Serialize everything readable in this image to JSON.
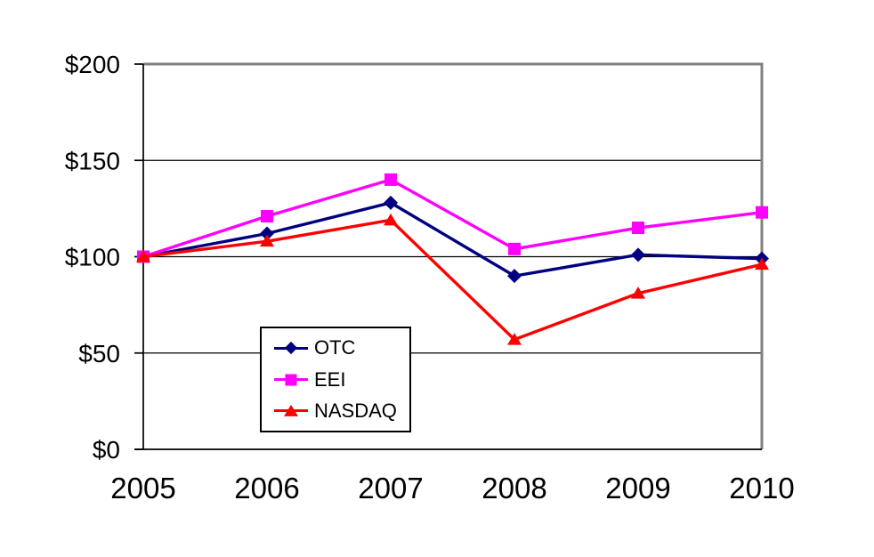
{
  "chart_data": {
    "type": "line",
    "title": "",
    "x_labels": [
      "2005",
      "2006",
      "2007",
      "2008",
      "2009",
      "2010"
    ],
    "y_ticks": [
      0,
      50,
      100,
      150,
      200
    ],
    "y_tick_labels": [
      "$0",
      "$50",
      "$100",
      "$150",
      "$200"
    ],
    "ylim": [
      0,
      200
    ],
    "grid": "horizontal-major",
    "legend_position": "inside-lower-left",
    "series": [
      {
        "name": "OTC",
        "color": "#000080",
        "marker": "diamond",
        "values": [
          100,
          112,
          128,
          90,
          101,
          99
        ]
      },
      {
        "name": "EEI",
        "color": "#FF00FF",
        "marker": "square",
        "values": [
          100,
          121,
          140,
          104,
          115,
          123
        ]
      },
      {
        "name": "NASDAQ",
        "color": "#FF0000",
        "marker": "triangle",
        "values": [
          100,
          108,
          119,
          57,
          81,
          96
        ]
      }
    ],
    "colors": {
      "axis": "#000000",
      "gridline": "#000000",
      "plot_border": "#808080",
      "background": "#FFFFFF",
      "text": "#000000"
    }
  }
}
